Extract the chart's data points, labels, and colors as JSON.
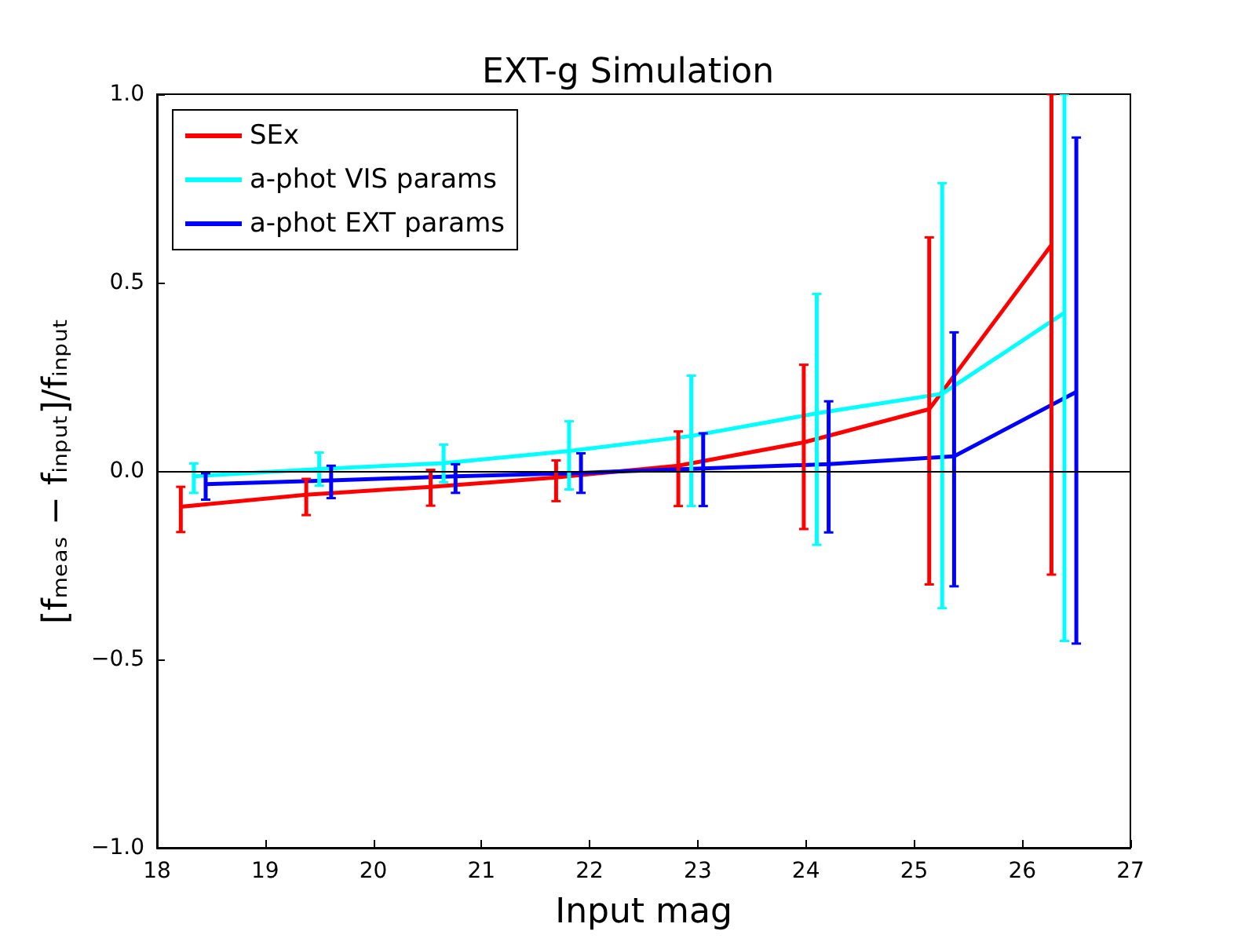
{
  "chart_data": {
    "type": "line",
    "title": "EXT-g Simulation",
    "xlabel": "Input mag",
    "ylabel": "[fₘₑₐₛ − fᵢₙₚᵤₜ]/fᵢₙₚᵤₜ",
    "xlim": [
      18,
      27
    ],
    "xticks": [
      18,
      19,
      20,
      21,
      22,
      23,
      24,
      25,
      26,
      27
    ],
    "ylim": [
      -1,
      1
    ],
    "yticks": [
      {
        "value": -1,
        "label": "−1.0"
      },
      {
        "value": -0.5,
        "label": "−0.5"
      },
      {
        "value": 0,
        "label": "0.0"
      },
      {
        "value": 0.5,
        "label": "0.5"
      },
      {
        "value": 1,
        "label": "1.0"
      }
    ],
    "grid": false,
    "legend": "top left",
    "marker": "none",
    "line_style": "solid",
    "ref_lines": [
      {
        "axis": "y",
        "value": 0,
        "color": "#000000"
      }
    ],
    "series": [
      {
        "name": "SEx",
        "color": "#ff0000",
        "x": [
          18.22,
          19.38,
          20.53,
          21.69,
          22.82,
          23.98,
          25.14,
          26.27
        ],
        "values": [
          -0.095,
          -0.063,
          -0.042,
          -0.017,
          0.014,
          0.076,
          0.164,
          0.6
        ],
        "errors": [
          [
            -0.162,
            -0.042
          ],
          [
            -0.117,
            -0.021
          ],
          [
            -0.092,
            0.003
          ],
          [
            -0.08,
            0.028
          ],
          [
            -0.093,
            0.105
          ],
          [
            -0.154,
            0.282
          ],
          [
            -0.301,
            0.62
          ],
          [
            -0.275,
            1.0
          ]
        ]
      },
      {
        "name": "a-phot VIS params",
        "color": "#00ffff",
        "x": [
          18.34,
          19.5,
          20.65,
          21.81,
          22.94,
          24.1,
          25.26,
          26.39
        ],
        "values": [
          -0.014,
          0.005,
          0.021,
          0.053,
          0.093,
          0.153,
          0.205,
          0.42
        ],
        "errors": [
          [
            -0.058,
            0.02
          ],
          [
            -0.039,
            0.049
          ],
          [
            -0.03,
            0.07
          ],
          [
            -0.049,
            0.132
          ],
          [
            -0.093,
            0.253
          ],
          [
            -0.196,
            0.47
          ],
          [
            -0.364,
            0.764
          ],
          [
            -0.451,
            1.0
          ]
        ]
      },
      {
        "name": "a-phot EXT params",
        "color": "#0000ff",
        "x": [
          18.45,
          19.61,
          20.76,
          21.92,
          23.05,
          24.21,
          25.37,
          26.5
        ],
        "values": [
          -0.035,
          -0.025,
          -0.014,
          -0.005,
          0.007,
          0.018,
          0.039,
          0.21
        ],
        "errors": [
          [
            -0.076,
            -0.006
          ],
          [
            -0.072,
            0.014
          ],
          [
            -0.058,
            0.018
          ],
          [
            -0.058,
            0.047
          ],
          [
            -0.093,
            0.1
          ],
          [
            -0.163,
            0.185
          ],
          [
            -0.306,
            0.368
          ],
          [
            -0.458,
            0.885
          ]
        ]
      }
    ]
  }
}
